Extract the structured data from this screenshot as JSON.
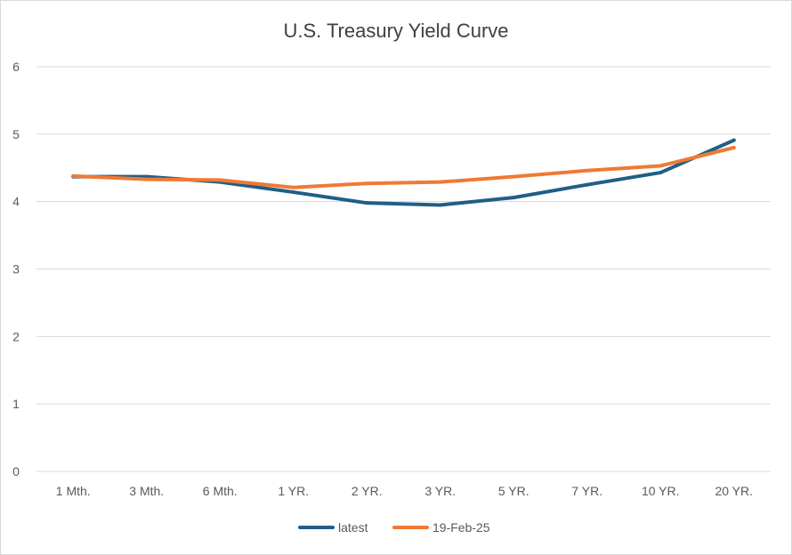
{
  "chart_data": {
    "type": "line",
    "title": "U.S. Treasury Yield Curve",
    "categories": [
      "1 Mth.",
      "3 Mth.",
      "6 Mth.",
      "1 YR.",
      "2 YR.",
      "3 YR.",
      "5 YR.",
      "7 YR.",
      "10 YR.",
      "20 YR."
    ],
    "series": [
      {
        "name": "latest",
        "color": "#1f5f86",
        "values": [
          4.37,
          4.37,
          4.29,
          4.14,
          3.98,
          3.95,
          4.06,
          4.25,
          4.43,
          4.91
        ]
      },
      {
        "name": "19-Feb-25",
        "color": "#ef7a34",
        "values": [
          4.38,
          4.33,
          4.32,
          4.21,
          4.27,
          4.29,
          4.37,
          4.46,
          4.53,
          4.8
        ]
      }
    ],
    "ylim": [
      0,
      6
    ],
    "yticks": [
      "0",
      "1",
      "2",
      "3",
      "4",
      "5",
      "6"
    ],
    "grid": true,
    "legend": "bottom"
  }
}
